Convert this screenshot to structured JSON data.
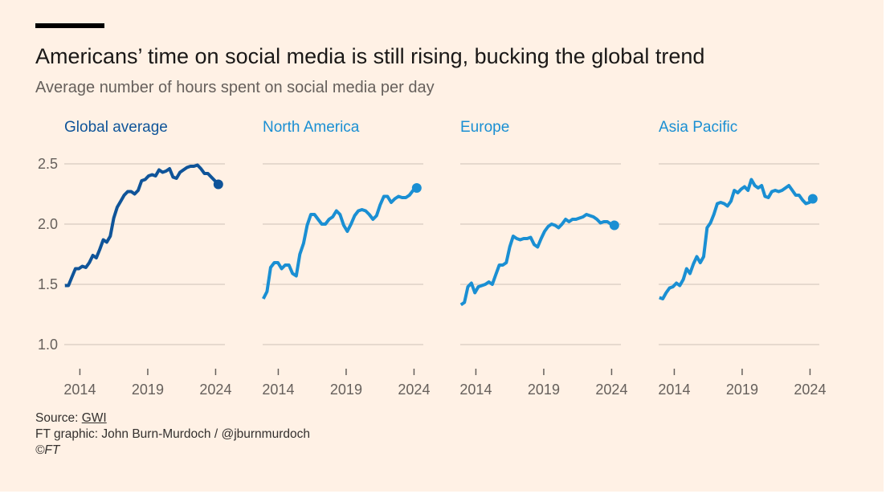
{
  "title": "Americans’ time on social media is still rising, bucking the global trend",
  "subtitle": "Average number of hours spent on social media per day",
  "colors": {
    "background": "#fff1e5",
    "global": "#0f5499",
    "regions": "#1a8fd3",
    "grid": "#e6d9ce",
    "text": "#66605c"
  },
  "footer": {
    "source_label": "Source: ",
    "source_link": "GWI",
    "credit": "FT graphic: John Burn-Murdoch / @jburnmurdoch",
    "copyright": "©FT"
  },
  "chart_data": {
    "type": "line",
    "ylim": [
      0.8,
      2.6
    ],
    "yticks": [
      1.0,
      1.5,
      2.0,
      2.5
    ],
    "ytick_labels": [
      "1.0",
      "1.5",
      "2.0",
      "2.5"
    ],
    "xticks": [
      2014,
      2019,
      2024
    ],
    "xtick_labels": [
      "2014",
      "2019",
      "2024"
    ],
    "x_range": [
      2012.9,
      2024.2
    ],
    "grid": true,
    "panels": [
      {
        "name": "Global average",
        "color": "#0f5499",
        "values": [
          1.49,
          1.49,
          1.56,
          1.63,
          1.63,
          1.65,
          1.64,
          1.68,
          1.74,
          1.72,
          1.79,
          1.87,
          1.85,
          1.9,
          2.05,
          2.14,
          2.19,
          2.24,
          2.27,
          2.27,
          2.25,
          2.28,
          2.36,
          2.37,
          2.4,
          2.41,
          2.4,
          2.45,
          2.43,
          2.44,
          2.46,
          2.39,
          2.38,
          2.43,
          2.45,
          2.47,
          2.48,
          2.48,
          2.49,
          2.46,
          2.42,
          2.42,
          2.39,
          2.36,
          2.33
        ]
      },
      {
        "name": "North America",
        "color": "#1a8fd3",
        "values": [
          1.38,
          1.44,
          1.64,
          1.68,
          1.68,
          1.63,
          1.66,
          1.66,
          1.59,
          1.57,
          1.75,
          1.84,
          1.99,
          2.08,
          2.08,
          2.04,
          2.0,
          2.0,
          2.04,
          2.06,
          2.11,
          2.08,
          1.99,
          1.94,
          2.0,
          2.07,
          2.11,
          2.12,
          2.11,
          2.08,
          2.04,
          2.07,
          2.16,
          2.23,
          2.23,
          2.18,
          2.21,
          2.23,
          2.22,
          2.22,
          2.24,
          2.28,
          2.3
        ]
      },
      {
        "name": "Europe",
        "color": "#1a8fd3",
        "values": [
          1.33,
          1.35,
          1.48,
          1.51,
          1.43,
          1.48,
          1.49,
          1.5,
          1.52,
          1.5,
          1.58,
          1.66,
          1.66,
          1.68,
          1.81,
          1.9,
          1.88,
          1.87,
          1.88,
          1.88,
          1.89,
          1.83,
          1.81,
          1.88,
          1.94,
          1.98,
          2.0,
          1.99,
          1.97,
          2.0,
          2.04,
          2.02,
          2.04,
          2.04,
          2.05,
          2.06,
          2.08,
          2.07,
          2.06,
          2.04,
          2.01,
          2.02,
          2.02,
          2.0,
          1.99
        ]
      },
      {
        "name": "Asia Pacific",
        "color": "#1a8fd3",
        "values": [
          1.39,
          1.38,
          1.43,
          1.47,
          1.48,
          1.51,
          1.49,
          1.54,
          1.63,
          1.59,
          1.67,
          1.73,
          1.68,
          1.73,
          1.97,
          2.01,
          2.08,
          2.17,
          2.18,
          2.17,
          2.15,
          2.19,
          2.28,
          2.26,
          2.29,
          2.31,
          2.28,
          2.37,
          2.32,
          2.3,
          2.32,
          2.23,
          2.22,
          2.27,
          2.28,
          2.27,
          2.28,
          2.3,
          2.32,
          2.28,
          2.24,
          2.24,
          2.2,
          2.17,
          2.18,
          2.21
        ]
      }
    ]
  }
}
